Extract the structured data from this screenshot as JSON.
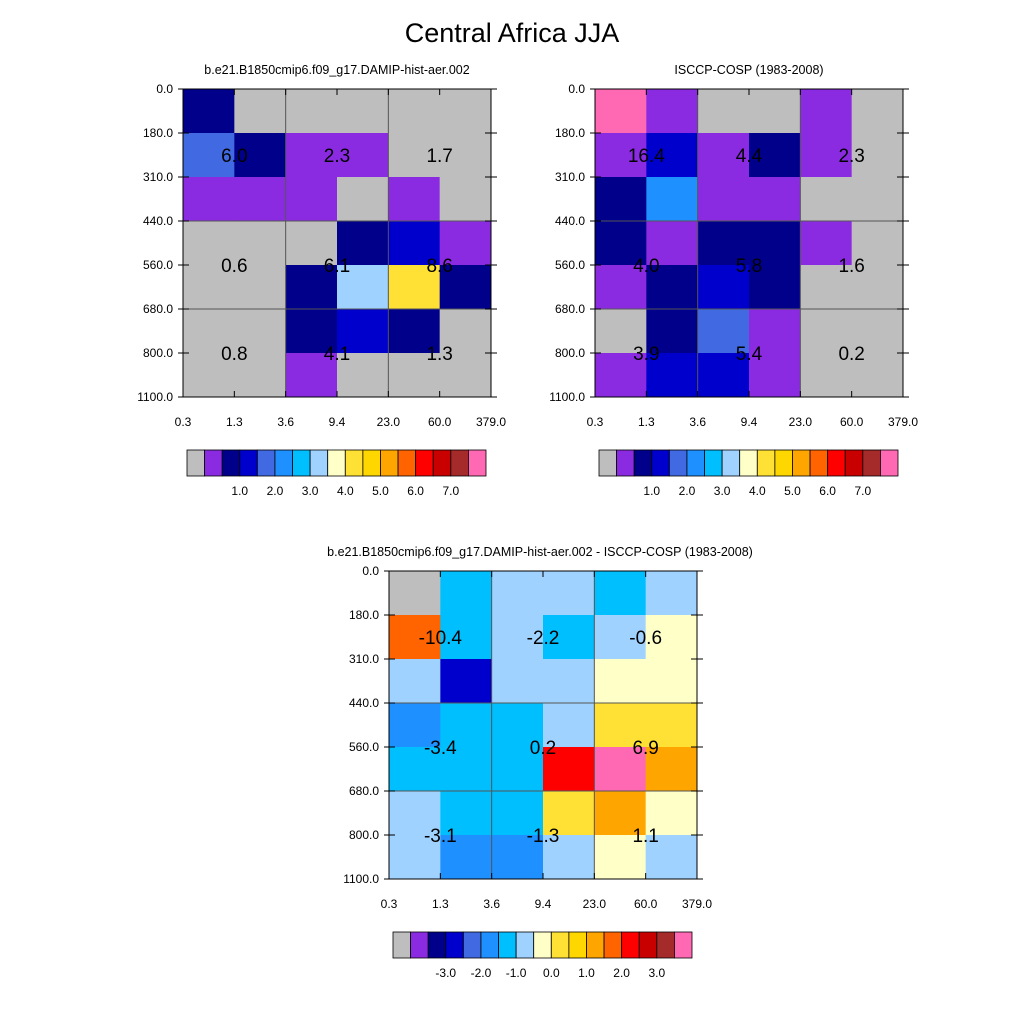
{
  "title": "Central Africa JJA",
  "x_ticks": [
    "0.3",
    "1.3",
    "3.6",
    "9.4",
    "23.0",
    "60.0",
    "379.0"
  ],
  "y_ticks": [
    "0.0",
    "180.0",
    "310.0",
    "440.0",
    "560.0",
    "680.0",
    "800.0",
    "1100.0"
  ],
  "colors": {
    "abs_palette": [
      "#bebebe",
      "#8a2be2",
      "#00008b",
      "#0000cd",
      "#4169e1",
      "#1e90ff",
      "#00bfff",
      "#a0d2ff",
      "#ffffc8",
      "#ffe135",
      "#ffd700",
      "#ffa500",
      "#ff6400",
      "#ff0000",
      "#c80000",
      "#a52a2a",
      "#ff69b4"
    ],
    "diff_palette": [
      "#bebebe",
      "#8a2be2",
      "#00008b",
      "#0000cd",
      "#4169e1",
      "#1e90ff",
      "#00bfff",
      "#a0d2ff",
      "#ffffc8",
      "#ffe135",
      "#ffd700",
      "#ffa500",
      "#ff6400",
      "#ff0000",
      "#c80000",
      "#a52a2a",
      "#ff69b4"
    ]
  },
  "colorbars": {
    "abs_labels": [
      "1.0",
      "2.0",
      "3.0",
      "4.0",
      "5.0",
      "6.0",
      "7.0"
    ],
    "diff_labels": [
      "-3.0",
      "-2.0",
      "-1.0",
      "0.0",
      "1.0",
      "2.0",
      "3.0"
    ]
  },
  "chart_data": [
    {
      "type": "heatmap",
      "title": "b.e21.B1850cmip6.f09_g17.DAMIP-hist-aer.002",
      "x_bins": [
        "0.3",
        "1.3",
        "3.6",
        "9.4",
        "23.0",
        "60.0",
        "379.0"
      ],
      "y_bins": [
        "0.0",
        "180.0",
        "310.0",
        "440.0",
        "560.0",
        "680.0",
        "800.0",
        "1100.0"
      ],
      "cell_colors": [
        [
          "#00008b",
          "#bebebe",
          "#bebebe",
          "#bebebe",
          "#bebebe",
          "#bebebe"
        ],
        [
          "#4169e1",
          "#00008b",
          "#8a2be2",
          "#8a2be2",
          "#bebebe",
          "#bebebe"
        ],
        [
          "#8a2be2",
          "#8a2be2",
          "#8a2be2",
          "#bebebe",
          "#8a2be2",
          "#bebebe"
        ],
        [
          "#bebebe",
          "#bebebe",
          "#bebebe",
          "#00008b",
          "#0000cd",
          "#8a2be2"
        ],
        [
          "#bebebe",
          "#bebebe",
          "#00008b",
          "#a0d2ff",
          "#ffe135",
          "#00008b"
        ],
        [
          "#bebebe",
          "#bebebe",
          "#00008b",
          "#0000cd",
          "#00008b",
          "#bebebe"
        ],
        [
          "#bebebe",
          "#bebebe",
          "#8a2be2",
          "#bebebe",
          "#bebebe",
          "#bebebe"
        ]
      ],
      "group_values": [
        [
          "6.0",
          "2.3",
          "1.7"
        ],
        [
          "0.6",
          "6.1",
          "8.6"
        ],
        [
          "0.8",
          "4.1",
          "1.3"
        ]
      ]
    },
    {
      "type": "heatmap",
      "title": "ISCCP-COSP (1983-2008)",
      "x_bins": [
        "0.3",
        "1.3",
        "3.6",
        "9.4",
        "23.0",
        "60.0",
        "379.0"
      ],
      "y_bins": [
        "0.0",
        "180.0",
        "310.0",
        "440.0",
        "560.0",
        "680.0",
        "800.0",
        "1100.0"
      ],
      "cell_colors": [
        [
          "#ff69b4",
          "#8a2be2",
          "#bebebe",
          "#bebebe",
          "#8a2be2",
          "#bebebe"
        ],
        [
          "#8a2be2",
          "#0000cd",
          "#8a2be2",
          "#00008b",
          "#8a2be2",
          "#bebebe"
        ],
        [
          "#00008b",
          "#1e90ff",
          "#8a2be2",
          "#8a2be2",
          "#bebebe",
          "#bebebe"
        ],
        [
          "#00008b",
          "#8a2be2",
          "#00008b",
          "#00008b",
          "#8a2be2",
          "#bebebe"
        ],
        [
          "#8a2be2",
          "#00008b",
          "#0000cd",
          "#00008b",
          "#bebebe",
          "#bebebe"
        ],
        [
          "#bebebe",
          "#00008b",
          "#4169e1",
          "#8a2be2",
          "#bebebe",
          "#bebebe"
        ],
        [
          "#8a2be2",
          "#0000cd",
          "#0000cd",
          "#8a2be2",
          "#bebebe",
          "#bebebe"
        ]
      ],
      "group_values": [
        [
          "16.4",
          "4.4",
          "2.3"
        ],
        [
          "4.0",
          "5.8",
          "1.6"
        ],
        [
          "3.9",
          "5.4",
          "0.2"
        ]
      ]
    },
    {
      "type": "heatmap",
      "title": "b.e21.B1850cmip6.f09_g17.DAMIP-hist-aer.002 - ISCCP-COSP (1983-2008)",
      "x_bins": [
        "0.3",
        "1.3",
        "3.6",
        "9.4",
        "23.0",
        "60.0",
        "379.0"
      ],
      "y_bins": [
        "0.0",
        "180.0",
        "310.0",
        "440.0",
        "560.0",
        "680.0",
        "800.0",
        "1100.0"
      ],
      "cell_colors": [
        [
          "#bebebe",
          "#00bfff",
          "#a0d2ff",
          "#a0d2ff",
          "#00bfff",
          "#a0d2ff"
        ],
        [
          "#ff6400",
          "#00bfff",
          "#a0d2ff",
          "#00bfff",
          "#a0d2ff",
          "#ffffc8"
        ],
        [
          "#a0d2ff",
          "#0000cd",
          "#a0d2ff",
          "#a0d2ff",
          "#ffffc8",
          "#ffffc8"
        ],
        [
          "#1e90ff",
          "#00bfff",
          "#00bfff",
          "#a0d2ff",
          "#ffe135",
          "#ffe135"
        ],
        [
          "#00bfff",
          "#00bfff",
          "#00bfff",
          "#ff0000",
          "#ff69b4",
          "#ffa500"
        ],
        [
          "#a0d2ff",
          "#00bfff",
          "#00bfff",
          "#ffe135",
          "#ffa500",
          "#ffffc8"
        ],
        [
          "#a0d2ff",
          "#1e90ff",
          "#1e90ff",
          "#a0d2ff",
          "#ffffc8",
          "#a0d2ff"
        ]
      ],
      "group_values": [
        [
          "-10.4",
          "-2.2",
          "-0.6"
        ],
        [
          "-3.4",
          "0.2",
          "6.9"
        ],
        [
          "-3.1",
          "-1.3",
          "1.1"
        ]
      ]
    }
  ]
}
